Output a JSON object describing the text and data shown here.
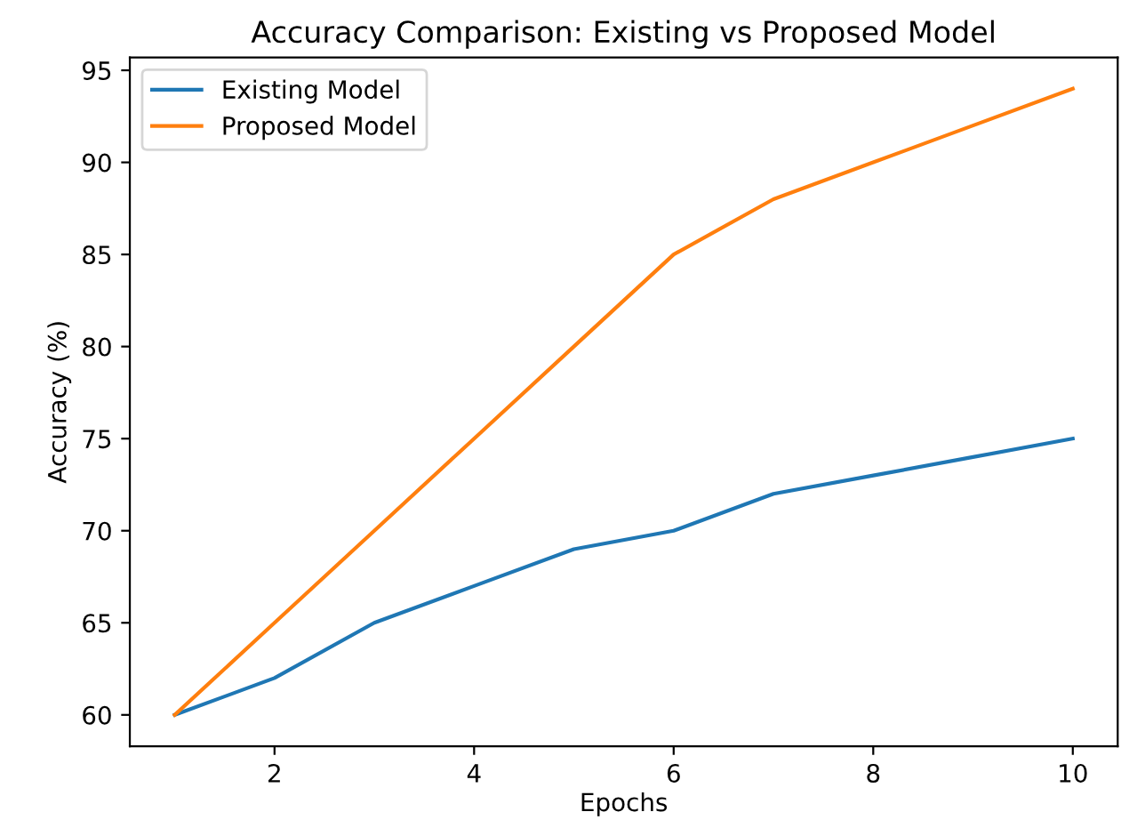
{
  "chart_data": {
    "type": "line",
    "title": "Accuracy Comparison: Existing vs Proposed Model",
    "xlabel": "Epochs",
    "ylabel": "Accuracy (%)",
    "x": [
      1,
      2,
      3,
      4,
      5,
      6,
      7,
      8,
      9,
      10
    ],
    "series": [
      {
        "name": "Existing Model",
        "color": "#1f77b4",
        "values": [
          60,
          62,
          65,
          67,
          69,
          70,
          72,
          73,
          74,
          75
        ]
      },
      {
        "name": "Proposed Model",
        "color": "#ff7f0e",
        "values": [
          60,
          65,
          70,
          75,
          80,
          85,
          88,
          90,
          92,
          94
        ]
      }
    ],
    "xlim": [
      0.55,
      10.45
    ],
    "xticks": [
      2,
      4,
      6,
      8,
      10
    ],
    "ylim": [
      58.3,
      95.7
    ],
    "yticks": [
      60,
      65,
      70,
      75,
      80,
      85,
      90,
      95
    ],
    "legend": "top left",
    "grid": false,
    "marker": "none",
    "line_style": "solid"
  }
}
